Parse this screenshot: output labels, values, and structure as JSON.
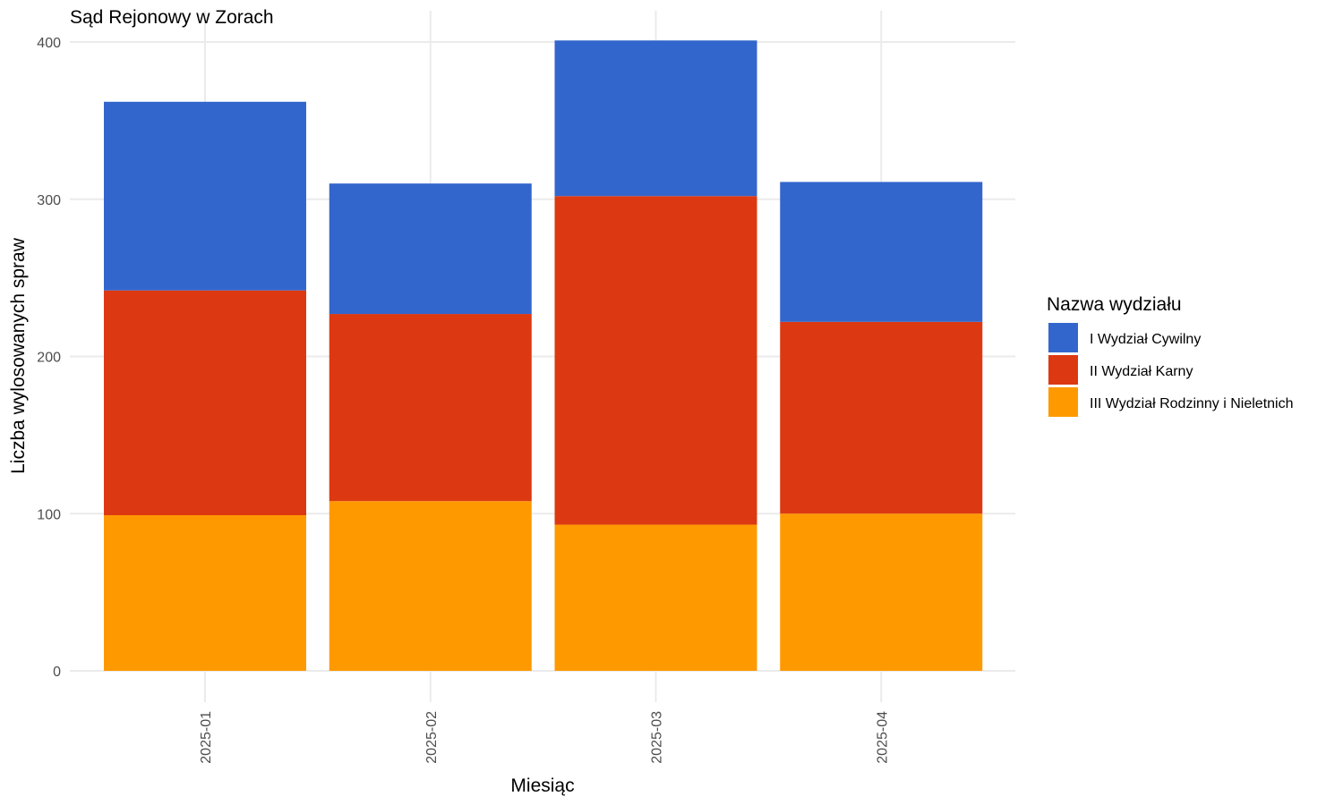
{
  "chart_data": {
    "type": "bar",
    "stacked": true,
    "title": "Sąd Rejonowy w Zorach",
    "xlabel": "Miesiąc",
    "ylabel": "Liczba wylosowanych spraw",
    "categories": [
      "2025-01",
      "2025-02",
      "2025-03",
      "2025-04"
    ],
    "ylim": [
      0,
      400
    ],
    "yticks": [
      0,
      100,
      200,
      300,
      400
    ],
    "grid": true,
    "legend": {
      "title": "Nazwa wydziału",
      "placement": "right"
    },
    "series": [
      {
        "name": "I Wydział Cywilny",
        "color": "#3366cc",
        "values": [
          120,
          83,
          99,
          89
        ]
      },
      {
        "name": "II Wydział Karny",
        "color": "#dc3912",
        "values": [
          143,
          119,
          209,
          122
        ]
      },
      {
        "name": "III Wydział Rodzinny i Nieletnich",
        "color": "#ff9900",
        "values": [
          99,
          108,
          93,
          100
        ]
      }
    ]
  }
}
